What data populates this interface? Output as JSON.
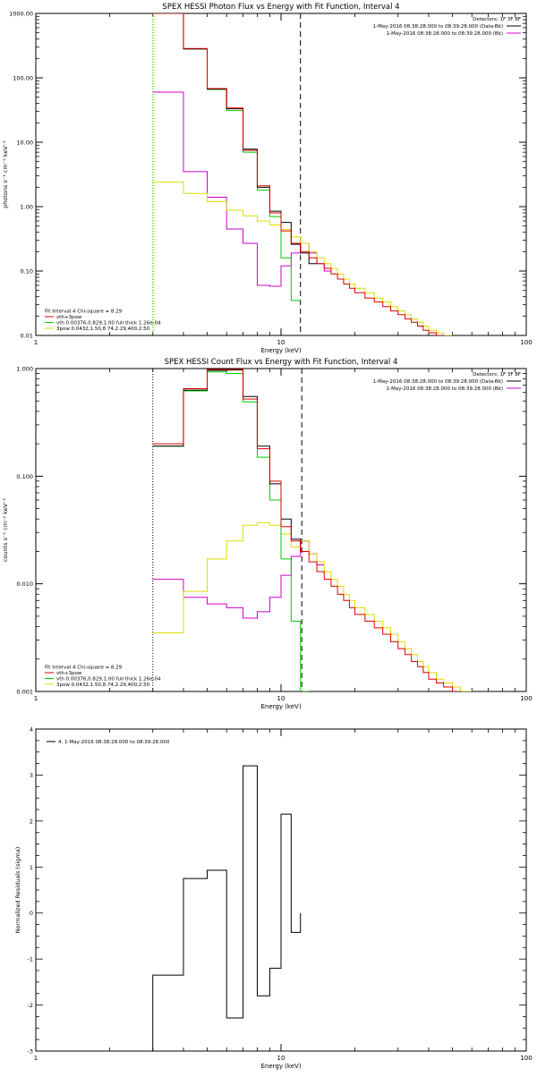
{
  "colors": {
    "data": "#000000",
    "vth_3pow": "#dd0000",
    "vth": "#00cc00",
    "pow": "#dddd00",
    "bk": "#cc00cc",
    "axis": "#000000"
  },
  "chart_data": [
    {
      "type": "line",
      "step": true,
      "title": "SPEX HESSI Photon Flux vs Energy with Fit Function, Interval 4",
      "xlabel": "Energy (keV)",
      "ylabel": "photons s⁻¹ cm⁻² keV⁻¹",
      "xscale": "log",
      "yscale": "log",
      "xlim": [
        1,
        100
      ],
      "ylim": [
        0.01,
        1000
      ],
      "xticks": [
        {
          "v": 1,
          "l": "1"
        },
        {
          "v": 10,
          "l": "10"
        },
        {
          "v": 100,
          "l": "100"
        }
      ],
      "yticks": [
        {
          "v": 0.01,
          "l": "0.01"
        },
        {
          "v": 0.1,
          "l": "0.10"
        },
        {
          "v": 1,
          "l": "1.00"
        },
        {
          "v": 10,
          "l": "10.00"
        },
        {
          "v": 100,
          "l": "100.00"
        },
        {
          "v": 1000,
          "l": "1000.00"
        }
      ],
      "vlines": [
        {
          "x": 3,
          "style": "dotted",
          "color": "#00cc00"
        },
        {
          "x": 3,
          "style": "dotted",
          "color": "#dddd00"
        },
        {
          "x": 12,
          "style": "dashed",
          "color": "#000000"
        }
      ],
      "legend_right": [
        {
          "text": "Detectors: 1F 3F 8F",
          "line": false
        },
        {
          "text": "1-May-2016 08:38:28.000 to 08:39:28.000 (Data-Bk)",
          "color": "#000000",
          "line": true
        },
        {
          "text": "1-May-2016 08:38:28.000 to 08:39:28.000 (Bk)",
          "color": "#cc00cc",
          "line": true
        }
      ],
      "legend_left": [
        {
          "text": "Fit Interval  4    Chi-square = 8.29",
          "line": false
        },
        {
          "text": "vth+3pow",
          "color": "#dd0000",
          "line": true
        },
        {
          "text": "vth 0.00376,0.829,1.00  full thick 1.26e-04",
          "color": "#00cc00",
          "line": true
        },
        {
          "text": "3pow 0.0432,1.50,8.74,2.29,400,2.50",
          "color": "#dddd00",
          "line": true
        }
      ],
      "edges": [
        3,
        4,
        5,
        6,
        7,
        8,
        9,
        10,
        11,
        12,
        13,
        14,
        15,
        16,
        17,
        18,
        19,
        20,
        22,
        24,
        26,
        28,
        30,
        32,
        34,
        36,
        38,
        40,
        43,
        46,
        50
      ],
      "series": [
        {
          "name": "bk",
          "color": "#cc00cc",
          "values": [
            60,
            3.5,
            1.4,
            0.45,
            0.27,
            0.06,
            0.058,
            0.12,
            0.19,
            0.27,
            0.19,
            0.13,
            0.1
          ]
        },
        {
          "name": "pow",
          "color": "#dddd00",
          "values": [
            2.4,
            1.6,
            1.2,
            0.88,
            0.72,
            0.6,
            0.52,
            0.44,
            0.34,
            0.27,
            0.2,
            0.16,
            0.13,
            0.11,
            0.09,
            0.075,
            0.063,
            0.054,
            0.046,
            0.038,
            0.033,
            0.028,
            0.024,
            0.021,
            0.018,
            0.016,
            0.014,
            0.012,
            0.011,
            0.01
          ]
        },
        {
          "name": "vth",
          "color": "#00cc00",
          "values": [
            1000,
            280,
            66,
            31,
            7,
            1.8,
            0.7,
            0.16,
            0.035
          ]
        },
        {
          "name": "data",
          "color": "#000000",
          "values": [
            1000,
            280,
            67,
            33,
            7.8,
            2,
            0.85,
            0.57,
            0.26,
            0.19,
            0.13
          ]
        },
        {
          "name": "vth_3pow",
          "color": "#dd0000",
          "values": [
            1000,
            285,
            68,
            34,
            7.5,
            2.1,
            0.8,
            0.42,
            0.27,
            0.2,
            0.16,
            0.13,
            0.11,
            0.09,
            0.075,
            0.063,
            0.054,
            0.046,
            0.038,
            0.033,
            0.028,
            0.024,
            0.021,
            0.018,
            0.016,
            0.014,
            0.012,
            0.011,
            0.01,
            0.009
          ]
        }
      ]
    },
    {
      "type": "line",
      "step": true,
      "title": "SPEX HESSI Count Flux vs Energy with Fit Function, Interval 4",
      "xlabel": "Energy (keV)",
      "ylabel": "counts s⁻¹ cm⁻² keV⁻¹",
      "xscale": "log",
      "yscale": "log",
      "xlim": [
        1,
        100
      ],
      "ylim": [
        0.001,
        1
      ],
      "xticks": [
        {
          "v": 1,
          "l": "1"
        },
        {
          "v": 10,
          "l": "10"
        },
        {
          "v": 100,
          "l": "100"
        }
      ],
      "yticks": [
        {
          "v": 0.001,
          "l": "0.001"
        },
        {
          "v": 0.01,
          "l": "0.010"
        },
        {
          "v": 0.1,
          "l": "0.100"
        },
        {
          "v": 1,
          "l": "1.000"
        }
      ],
      "vlines": [
        {
          "x": 3,
          "style": "dotted",
          "color": "#000000"
        },
        {
          "x": 12,
          "style": "dashed",
          "color": "#000000"
        }
      ],
      "legend_right": [
        {
          "text": "Detectors: 1F 3F 8F",
          "line": false
        },
        {
          "text": "1-May-2016 08:38:28.000 to 08:39:28.000 (Data-Bk)",
          "color": "#000000",
          "line": true
        },
        {
          "text": "1-May-2016 08:38:28.000 to 08:39:28.000 (Bk)",
          "color": "#cc00cc",
          "line": true
        }
      ],
      "legend_left": [
        {
          "text": "Fit Interval  4    Chi-square = 8.29",
          "line": false
        },
        {
          "text": "vth+3pow",
          "color": "#dd0000",
          "line": true
        },
        {
          "text": "vth 0.00376,0.829,1.00  full thick 1.26e-04",
          "color": "#00cc00",
          "line": true
        },
        {
          "text": "3pow 0.0432,1.50,8.74,2.29,400,2.50",
          "color": "#dddd00",
          "line": true
        }
      ],
      "edges": [
        3,
        4,
        5,
        6,
        7,
        8,
        9,
        10,
        11,
        12,
        13,
        14,
        15,
        16,
        17,
        18,
        19,
        20,
        22,
        24,
        26,
        28,
        30,
        32,
        34,
        36,
        38,
        40,
        43,
        46,
        50,
        54,
        60
      ],
      "series": [
        {
          "name": "bk",
          "color": "#cc00cc",
          "values": [
            0.011,
            0.0075,
            0.0065,
            0.006,
            0.0048,
            0.0055,
            0.0075,
            0.012,
            0.018,
            0.025,
            0.019,
            0.015
          ]
        },
        {
          "name": "pow",
          "color": "#dddd00",
          "values": [
            0.0035,
            0.0085,
            0.017,
            0.025,
            0.035,
            0.037,
            0.035,
            0.029,
            0.022,
            0.025,
            0.019,
            0.016,
            0.013,
            0.011,
            0.0095,
            0.008,
            0.007,
            0.006,
            0.0052,
            0.0045,
            0.0039,
            0.0034,
            0.0029,
            0.0025,
            0.0022,
            0.0019,
            0.0017,
            0.0015,
            0.0013,
            0.0012,
            0.0011,
            0.001
          ]
        },
        {
          "name": "vth",
          "color": "#00cc00",
          "values": [
            0.19,
            0.62,
            0.93,
            0.9,
            0.49,
            0.15,
            0.06,
            0.017,
            0.0045,
            0.001
          ]
        },
        {
          "name": "data",
          "color": "#000000",
          "values": [
            0.19,
            0.63,
            0.96,
            0.97,
            0.55,
            0.19,
            0.085,
            0.04,
            0.026,
            0.02
          ]
        },
        {
          "name": "vth_3pow",
          "color": "#dd0000",
          "values": [
            0.2,
            0.65,
            0.98,
            0.98,
            0.52,
            0.18,
            0.09,
            0.034,
            0.025,
            0.02,
            0.016,
            0.013,
            0.011,
            0.0095,
            0.008,
            0.007,
            0.006,
            0.0052,
            0.0045,
            0.0039,
            0.0034,
            0.0029,
            0.0025,
            0.0022,
            0.0019,
            0.0017,
            0.0015,
            0.0013,
            0.0012,
            0.0011,
            0.001,
            0.00095
          ]
        }
      ]
    },
    {
      "type": "line",
      "step": true,
      "title": "",
      "xlabel": "Energy (keV)",
      "ylabel": "Normalized Residuals (sigma)",
      "xscale": "log",
      "yscale": "linear",
      "xlim": [
        1,
        100
      ],
      "ylim": [
        -3,
        4
      ],
      "xticks": [
        {
          "v": 1,
          "l": "1"
        },
        {
          "v": 10,
          "l": "10"
        },
        {
          "v": 100,
          "l": "100"
        }
      ],
      "yticks": [
        {
          "v": -3,
          "l": "-3"
        },
        {
          "v": -2,
          "l": "-2"
        },
        {
          "v": -1,
          "l": "-1"
        },
        {
          "v": 0,
          "l": "0"
        },
        {
          "v": 1,
          "l": "1"
        },
        {
          "v": 2,
          "l": "2"
        },
        {
          "v": 3,
          "l": "3"
        },
        {
          "v": 4,
          "l": "4"
        }
      ],
      "vlines": [],
      "legend_right": [],
      "legend_left_top": [
        {
          "text": "4.  1-May-2016 08:38:28.000 to 08:39:28.000",
          "color": "#000000",
          "line": true
        }
      ],
      "edges": [
        3,
        4,
        5,
        6,
        7,
        8,
        9,
        10,
        11,
        12
      ],
      "series": [
        {
          "name": "residuals",
          "color": "#000000",
          "values": [
            -1.35,
            0.75,
            0.93,
            -2.28,
            3.2,
            -1.8,
            -1.2,
            2.15,
            -0.42
          ],
          "closed": true
        }
      ]
    }
  ]
}
